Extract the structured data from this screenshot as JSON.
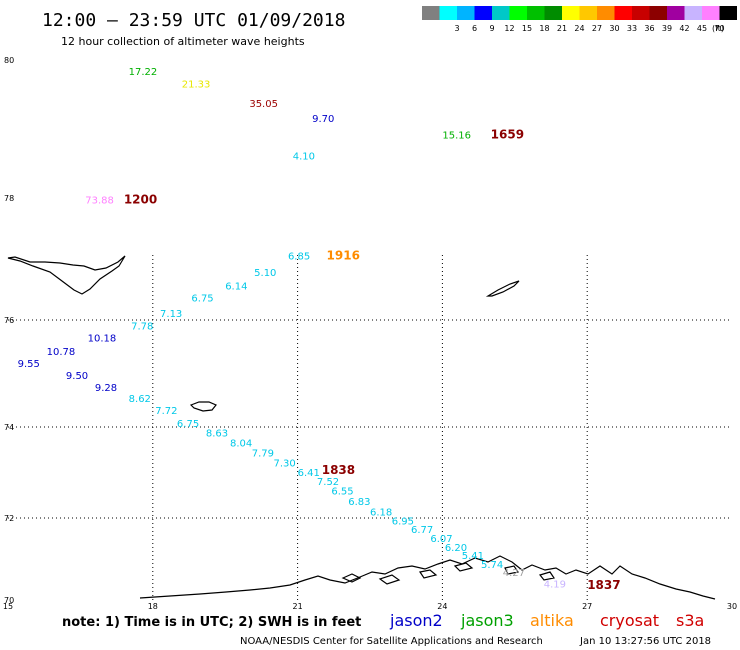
{
  "header": {
    "title": "12:00 – 23:59 UTC 01/09/2018",
    "subtitle": "12 hour collection of altimeter wave heights"
  },
  "color_scale": {
    "unit": "(ft)",
    "swatches": [
      {
        "color": "#808080",
        "label": ""
      },
      {
        "color": "#00ffff",
        "label": "3"
      },
      {
        "color": "#00b4ff",
        "label": "6"
      },
      {
        "color": "#0000ff",
        "label": "9"
      },
      {
        "color": "#00c8c8",
        "label": "12"
      },
      {
        "color": "#00ff00",
        "label": "15"
      },
      {
        "color": "#00c000",
        "label": "18"
      },
      {
        "color": "#008c00",
        "label": "21"
      },
      {
        "color": "#ffff00",
        "label": "24"
      },
      {
        "color": "#ffc800",
        "label": "27"
      },
      {
        "color": "#ff8c00",
        "label": "30"
      },
      {
        "color": "#ff0000",
        "label": "33"
      },
      {
        "color": "#c80000",
        "label": "36"
      },
      {
        "color": "#8c0000",
        "label": "39"
      },
      {
        "color": "#a000a0",
        "label": "42"
      },
      {
        "color": "#c8b4ff",
        "label": "45"
      },
      {
        "color": "#ff80ff",
        "label": "70"
      },
      {
        "color": "#000000",
        "label": ""
      }
    ]
  },
  "map": {
    "x_ticks": [
      "15",
      "18",
      "21",
      "24",
      "27",
      "30"
    ],
    "y_ticks": [
      "80",
      "78",
      "76",
      "74",
      "72",
      "70"
    ],
    "readings": [
      {
        "value": "17.22",
        "color": "#00b000",
        "lon": 17.5,
        "lat": 79.78
      },
      {
        "value": "21.33",
        "color": "#e8e800",
        "lon": 18.6,
        "lat": 79.6
      },
      {
        "value": "35.05",
        "color": "#9b0000",
        "lon": 20.0,
        "lat": 79.32
      },
      {
        "value": "9.70",
        "color": "#0000c8",
        "lon": 21.3,
        "lat": 79.1
      },
      {
        "value": "4.10",
        "color": "#00c8e8",
        "lon": 20.9,
        "lat": 78.56
      },
      {
        "value": "15.16",
        "color": "#00b000",
        "lon": 24.0,
        "lat": 78.86
      },
      {
        "value": "73.88",
        "color": "#ff80ff",
        "lon": 16.6,
        "lat": 77.91
      },
      {
        "value": "6.85",
        "color": "#00c8e8",
        "lon": 20.8,
        "lat": 76.99
      },
      {
        "value": "5.10",
        "color": "#00c8e8",
        "lon": 20.1,
        "lat": 76.72
      },
      {
        "value": "6.14",
        "color": "#00c8e8",
        "lon": 19.5,
        "lat": 76.5
      },
      {
        "value": "6.75",
        "color": "#00c8e8",
        "lon": 18.8,
        "lat": 76.3
      },
      {
        "value": "7.13",
        "color": "#00c8e8",
        "lon": 18.15,
        "lat": 76.05
      },
      {
        "value": "7.78",
        "color": "#00c8e8",
        "lon": 17.55,
        "lat": 75.82
      },
      {
        "value": "10.18",
        "color": "#0000c8",
        "lon": 16.65,
        "lat": 75.6
      },
      {
        "value": "10.78",
        "color": "#0000c8",
        "lon": 15.8,
        "lat": 75.35
      },
      {
        "value": "9.55",
        "color": "#0000c8",
        "lon": 15.2,
        "lat": 75.12
      },
      {
        "value": "9.50",
        "color": "#0000c8",
        "lon": 16.2,
        "lat": 74.9
      },
      {
        "value": "9.28",
        "color": "#0000c8",
        "lon": 16.8,
        "lat": 74.67
      },
      {
        "value": "8.62",
        "color": "#00c8e8",
        "lon": 17.5,
        "lat": 74.47
      },
      {
        "value": "7.72",
        "color": "#00c8e8",
        "lon": 18.05,
        "lat": 74.24
      },
      {
        "value": "6.75",
        "color": "#00c8e8",
        "lon": 18.5,
        "lat": 74.0
      },
      {
        "value": "8.63",
        "color": "#00c8e8",
        "lon": 19.1,
        "lat": 73.79
      },
      {
        "value": "8.04",
        "color": "#00c8e8",
        "lon": 19.6,
        "lat": 73.57
      },
      {
        "value": "7.79",
        "color": "#00c8e8",
        "lon": 20.05,
        "lat": 73.35
      },
      {
        "value": "7.30",
        "color": "#00c8e8",
        "lon": 20.5,
        "lat": 73.13
      },
      {
        "value": "6.41",
        "color": "#00c8e8",
        "lon": 21.0,
        "lat": 72.92
      },
      {
        "value": "7.52",
        "color": "#00c8e8",
        "lon": 21.4,
        "lat": 72.73
      },
      {
        "value": "6.55",
        "color": "#00c8e8",
        "lon": 21.7,
        "lat": 72.52
      },
      {
        "value": "6.83",
        "color": "#00c8e8",
        "lon": 22.05,
        "lat": 72.29
      },
      {
        "value": "6.18",
        "color": "#00c8e8",
        "lon": 22.5,
        "lat": 72.06
      },
      {
        "value": "6.95",
        "color": "#00c8e8",
        "lon": 22.95,
        "lat": 71.84
      },
      {
        "value": "6.77",
        "color": "#00c8e8",
        "lon": 23.35,
        "lat": 71.63
      },
      {
        "value": "6.07",
        "color": "#00c8e8",
        "lon": 23.75,
        "lat": 71.42
      },
      {
        "value": "6.20",
        "color": "#00c8e8",
        "lon": 24.05,
        "lat": 71.2
      },
      {
        "value": "5.41",
        "color": "#00c8e8",
        "lon": 24.4,
        "lat": 71.0
      },
      {
        "value": "5.74",
        "color": "#00c8e8",
        "lon": 24.8,
        "lat": 70.78
      },
      {
        "value": "4.27",
        "color": "#a0a0a0",
        "lon": 25.25,
        "lat": 70.58
      },
      {
        "value": "4.19",
        "color": "#c8b4ff",
        "lon": 26.1,
        "lat": 70.3
      }
    ],
    "times": [
      {
        "value": "1200",
        "color": "#8b0000",
        "lon": 17.4,
        "lat": 77.91
      },
      {
        "value": "1659",
        "color": "#8b0000",
        "lon": 25.0,
        "lat": 78.86
      },
      {
        "value": "1916",
        "color": "#ff8c00",
        "lon": 21.6,
        "lat": 76.99
      },
      {
        "value": "1838",
        "color": "#8b0000",
        "lon": 21.5,
        "lat": 72.97
      },
      {
        "value": "1837",
        "color": "#8b0000",
        "lon": 27.0,
        "lat": 70.27
      }
    ]
  },
  "footer": {
    "note": "note: 1) Time is in UTC; 2) SWH is in feet",
    "satellites": [
      {
        "name": "jason2",
        "color": "#0000c8"
      },
      {
        "name": "jason3",
        "color": "#00a000"
      },
      {
        "name": "altika",
        "color": "#ff8c00"
      },
      {
        "name": "cryosat",
        "color": "#d00000"
      },
      {
        "name": "s3a",
        "color": "#d00000"
      }
    ],
    "credit": "NOAA/NESDIS Center for Satellite Applications and Research",
    "timestamp": "Jan 10 13:27:56 UTC 2018"
  }
}
